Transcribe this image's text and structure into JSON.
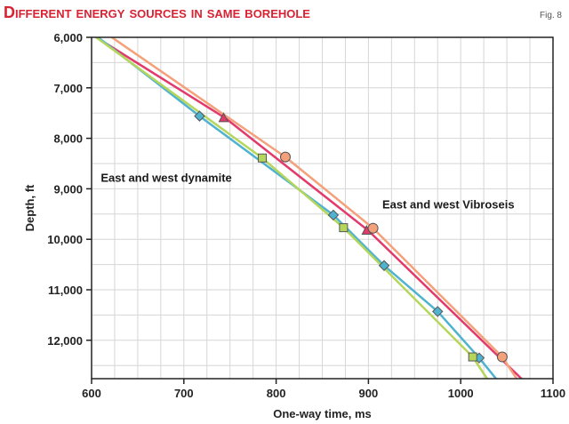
{
  "figure_label": "Fig. 8",
  "chart_data": {
    "type": "line",
    "title": "Different energy sources in same borehole",
    "xlabel": "One-way time, ms",
    "ylabel": "Depth, ft",
    "xlim": [
      600,
      1100
    ],
    "ylim": [
      6000,
      12800
    ],
    "y_inverted": true,
    "xticks": [
      600,
      700,
      800,
      900,
      1000,
      1100
    ],
    "xtick_labels": [
      "600",
      "700",
      "800",
      "900",
      "1000",
      "1100"
    ],
    "yticks": [
      6000,
      7000,
      8000,
      9000,
      10000,
      11000,
      12000
    ],
    "ytick_labels": [
      "6,000",
      "7,000",
      "8,000",
      "9,000",
      "10,000",
      "11,000",
      "12,000"
    ],
    "grid": {
      "x": true,
      "y": true
    },
    "annotations": [
      {
        "text": "East and west dynamite",
        "x": 610,
        "y": 8860
      },
      {
        "text": "East and west Vibroseis",
        "x": 915,
        "y": 9390
      }
    ],
    "series": [
      {
        "color": "#e23a6b",
        "x": [
          605,
          745,
          900,
          1068
        ],
        "y": [
          6000,
          7600,
          9830,
          12800
        ],
        "markers": [
          {
            "shape": "triangle",
            "x": 743,
            "y": 7600
          },
          {
            "shape": "triangle",
            "x": 898,
            "y": 9830
          }
        ]
      },
      {
        "color": "#f4a07a",
        "x": [
          622,
          810,
          905,
          1045,
          1062
        ],
        "y": [
          6000,
          8370,
          9780,
          12330,
          12800
        ],
        "markers": [
          {
            "shape": "circle",
            "x": 810,
            "y": 8370
          },
          {
            "shape": "circle",
            "x": 905,
            "y": 9780
          },
          {
            "shape": "circle",
            "x": 1045,
            "y": 12330
          }
        ]
      },
      {
        "color": "#4fb3cf",
        "x": [
          607,
          717,
          862,
          917,
          975,
          1020,
          1040
        ],
        "y": [
          6000,
          7560,
          9520,
          10520,
          11430,
          12350,
          12800
        ],
        "markers": [
          {
            "shape": "diamond",
            "x": 717,
            "y": 7560
          },
          {
            "shape": "diamond",
            "x": 862,
            "y": 9520
          },
          {
            "shape": "diamond",
            "x": 917,
            "y": 10520
          },
          {
            "shape": "diamond",
            "x": 975,
            "y": 11430
          },
          {
            "shape": "diamond",
            "x": 1020,
            "y": 12350
          }
        ]
      },
      {
        "color": "#b5d65a",
        "x": [
          605,
          785,
          873,
          1013,
          1030
        ],
        "y": [
          6000,
          8390,
          9770,
          12330,
          12800
        ],
        "markers": [
          {
            "shape": "square",
            "x": 785,
            "y": 8390
          },
          {
            "shape": "square",
            "x": 873,
            "y": 9770
          },
          {
            "shape": "square",
            "x": 1013,
            "y": 12330
          }
        ]
      }
    ]
  }
}
